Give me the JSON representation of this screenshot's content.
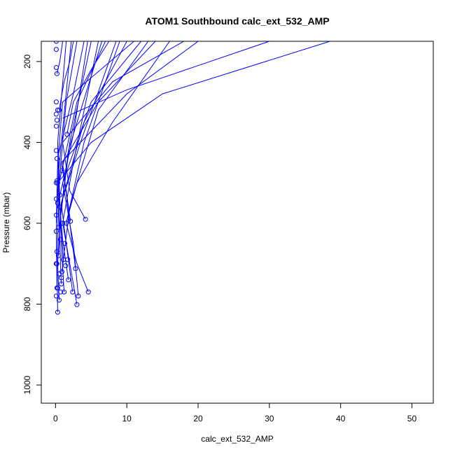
{
  "chart_data": {
    "type": "line",
    "title": "ATOM1 Southbound calc_ext_532_AMP",
    "xlabel": "calc_ext_532_AMP",
    "ylabel": "Pressure (mbar)",
    "xlim": [
      -2,
      53
    ],
    "ylim": [
      1045,
      150
    ],
    "y_reversed": true,
    "x_ticks": [
      0,
      10,
      20,
      30,
      40,
      50
    ],
    "y_ticks": [
      200,
      400,
      600,
      800,
      1000
    ],
    "x_tick_labels": [
      "0",
      "10",
      "20",
      "30",
      "40",
      "50"
    ],
    "y_tick_labels": [
      "200",
      "400",
      "600",
      "800",
      "1000"
    ],
    "grid": false,
    "legend": "none",
    "color": "#0000ff",
    "series": [
      {
        "points": [
          [
            0.3,
            820
          ],
          [
            0.2,
            700
          ],
          [
            0.5,
            500
          ],
          [
            1.5,
            300
          ],
          [
            3.0,
            150
          ]
        ]
      },
      {
        "points": [
          [
            3.0,
            801
          ],
          [
            2.0,
            700
          ],
          [
            1.0,
            600
          ],
          [
            2.5,
            450
          ],
          [
            6.0,
            150
          ]
        ]
      },
      {
        "points": [
          [
            4.6,
            770
          ],
          [
            3.0,
            700
          ],
          [
            1.5,
            600
          ],
          [
            4.0,
            400
          ],
          [
            9.0,
            150
          ]
        ]
      },
      {
        "points": [
          [
            3.2,
            780
          ],
          [
            2.5,
            650
          ],
          [
            1.0,
            500
          ],
          [
            5.0,
            300
          ],
          [
            12.0,
            150
          ]
        ]
      },
      {
        "points": [
          [
            2.8,
            712
          ],
          [
            2.0,
            600
          ],
          [
            1.0,
            450
          ],
          [
            6.0,
            300
          ],
          [
            14.0,
            150
          ]
        ]
      },
      {
        "points": [
          [
            4.2,
            590
          ],
          [
            2.0,
            520
          ],
          [
            1.0,
            400
          ],
          [
            8.0,
            250
          ],
          [
            18.0,
            150
          ]
        ]
      },
      {
        "points": [
          [
            2.4,
            770
          ],
          [
            1.5,
            650
          ],
          [
            0.8,
            550
          ],
          [
            4.0,
            350
          ],
          [
            10.0,
            150
          ]
        ]
      },
      {
        "points": [
          [
            1.2,
            770
          ],
          [
            0.8,
            650
          ],
          [
            0.5,
            500
          ],
          [
            3.0,
            300
          ],
          [
            7.0,
            150
          ]
        ]
      },
      {
        "points": [
          [
            0.5,
            790
          ],
          [
            0.3,
            700
          ],
          [
            0.6,
            600
          ],
          [
            2.0,
            400
          ],
          [
            5.0,
            150
          ]
        ]
      },
      {
        "points": [
          [
            1.8,
            740
          ],
          [
            1.0,
            640
          ],
          [
            0.5,
            540
          ],
          [
            2.5,
            380
          ],
          [
            4.5,
            150
          ]
        ]
      },
      {
        "points": [
          [
            2.1,
            595
          ],
          [
            1.5,
            520
          ],
          [
            0.8,
            450
          ],
          [
            10.0,
            280
          ],
          [
            20.0,
            150
          ]
        ]
      },
      {
        "points": [
          [
            0.3,
            500
          ],
          [
            5.0,
            400
          ],
          [
            15.0,
            280
          ],
          [
            38.5,
            150
          ]
        ]
      },
      {
        "points": [
          [
            1.0,
            340
          ],
          [
            10.0,
            270
          ],
          [
            20.0,
            210
          ],
          [
            30.0,
            150
          ]
        ]
      },
      {
        "points": [
          [
            0.5,
            320
          ],
          [
            1.2,
            250
          ],
          [
            2.0,
            200
          ],
          [
            2.5,
            150
          ]
        ]
      },
      {
        "points": [
          [
            0.2,
            230
          ],
          [
            0.6,
            200
          ],
          [
            1.0,
            150
          ]
        ]
      },
      {
        "points": [
          [
            0.8,
            750
          ],
          [
            0.5,
            600
          ],
          [
            0.3,
            400
          ],
          [
            1.5,
            150
          ]
        ]
      },
      {
        "points": [
          [
            1.5,
            600
          ],
          [
            3.0,
            500
          ],
          [
            8.0,
            350
          ],
          [
            16.0,
            150
          ]
        ]
      },
      {
        "points": [
          [
            0.4,
            680
          ],
          [
            0.8,
            550
          ],
          [
            3.5,
            400
          ],
          [
            8.5,
            150
          ]
        ]
      },
      {
        "points": [
          [
            1.6,
            380
          ],
          [
            2.5,
            300
          ],
          [
            5.0,
            220
          ],
          [
            7.5,
            150
          ]
        ]
      },
      {
        "points": [
          [
            0.1,
            600
          ],
          [
            0.3,
            450
          ],
          [
            1.0,
            300
          ],
          [
            11.0,
            150
          ]
        ]
      },
      {
        "points": [
          [
            0.9,
            720
          ],
          [
            2.0,
            560
          ],
          [
            6.0,
            320
          ],
          [
            13.0,
            150
          ]
        ]
      },
      {
        "points": [
          [
            0.6,
            560
          ],
          [
            0.4,
            430
          ],
          [
            2.5,
            280
          ],
          [
            4.0,
            150
          ]
        ]
      },
      {
        "points": [
          [
            0.2,
            760
          ],
          [
            0.1,
            620
          ],
          [
            0.4,
            480
          ],
          [
            1.2,
            330
          ],
          [
            2.2,
            150
          ]
        ]
      },
      {
        "points": [
          [
            1.1,
            690
          ],
          [
            0.7,
            580
          ],
          [
            1.8,
            420
          ],
          [
            6.5,
            150
          ]
        ]
      }
    ],
    "markers": [
      [
        0.3,
        820
      ],
      [
        3.0,
        801
      ],
      [
        4.6,
        770
      ],
      [
        3.2,
        780
      ],
      [
        2.8,
        712
      ],
      [
        4.2,
        590
      ],
      [
        2.4,
        770
      ],
      [
        1.2,
        770
      ],
      [
        0.5,
        790
      ],
      [
        1.8,
        740
      ],
      [
        2.1,
        595
      ],
      [
        1.5,
        600
      ],
      [
        0.8,
        750
      ],
      [
        0.9,
        720
      ],
      [
        1.1,
        690
      ],
      [
        0.6,
        560
      ],
      [
        0.2,
        760
      ],
      [
        0.4,
        680
      ],
      [
        0.1,
        780
      ],
      [
        0.1,
        700
      ],
      [
        0.2,
        700
      ],
      [
        0.1,
        620
      ],
      [
        0.1,
        580
      ],
      [
        0.1,
        500
      ],
      [
        0.2,
        495
      ],
      [
        0.3,
        500
      ],
      [
        0.1,
        540
      ],
      [
        0.2,
        440
      ],
      [
        0.1,
        420
      ],
      [
        0.1,
        360
      ],
      [
        0.2,
        345
      ],
      [
        0.1,
        330
      ],
      [
        0.3,
        320
      ],
      [
        0.5,
        320
      ],
      [
        0.1,
        300
      ],
      [
        0.2,
        230
      ],
      [
        0.1,
        215
      ],
      [
        0.1,
        170
      ],
      [
        0.1,
        150
      ],
      [
        1.6,
        380
      ],
      [
        0.9,
        470
      ],
      [
        0.7,
        640
      ],
      [
        0.4,
        610
      ],
      [
        1.3,
        650
      ],
      [
        0.6,
        530
      ],
      [
        0.3,
        550
      ],
      [
        1.0,
        600
      ],
      [
        0.2,
        670
      ],
      [
        0.5,
        725
      ],
      [
        0.8,
        735
      ],
      [
        1.4,
        705
      ],
      [
        0.3,
        760
      ],
      [
        0.7,
        770
      ],
      [
        1.7,
        690
      ]
    ]
  }
}
